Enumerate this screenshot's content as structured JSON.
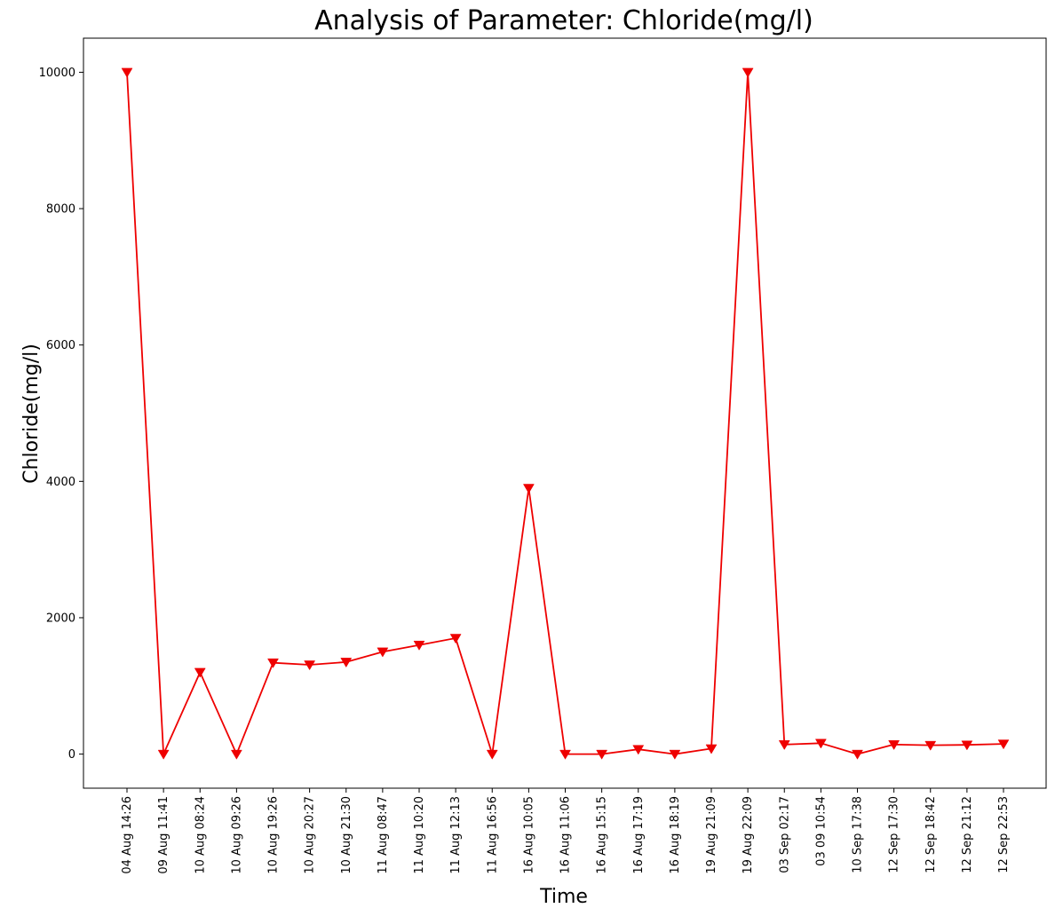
{
  "chart_data": {
    "type": "line",
    "title": "Analysis of Parameter: Chloride(mg/l)",
    "xlabel": "Time",
    "ylabel": "Chloride(mg/l)",
    "ylim": [
      -500,
      10500
    ],
    "yticks": [
      0,
      2000,
      4000,
      6000,
      8000,
      10000
    ],
    "grid": false,
    "marker": "triangle-down",
    "line_color": "#ee0000",
    "categories": [
      "04 Aug 14:26",
      "09 Aug 11:41",
      "10 Aug 08:24",
      "10 Aug 09:26",
      "10 Aug 19:26",
      "10 Aug 20:27",
      "10 Aug 21:30",
      "11 Aug 08:47",
      "11 Aug 10:20",
      "11 Aug 12:13",
      "11 Aug 16:56",
      "16 Aug 10:05",
      "16 Aug 11:06",
      "16 Aug 15:15",
      "16 Aug 17:19",
      "16 Aug 18:19",
      "19 Aug 21:09",
      "19 Aug 22:09",
      "03 Sep 02:17",
      "03 09 10:54",
      "10 Sep 17:38",
      "12 Sep 17:30",
      "12 Sep 18:42",
      "12 Sep 21:12",
      "12 Sep 22:53"
    ],
    "values": [
      10000,
      0,
      1200,
      0,
      1340,
      1310,
      1350,
      1500,
      1600,
      1700,
      0,
      3900,
      0,
      0,
      70,
      0,
      80,
      10000,
      140,
      160,
      0,
      140,
      130,
      135,
      150
    ]
  }
}
